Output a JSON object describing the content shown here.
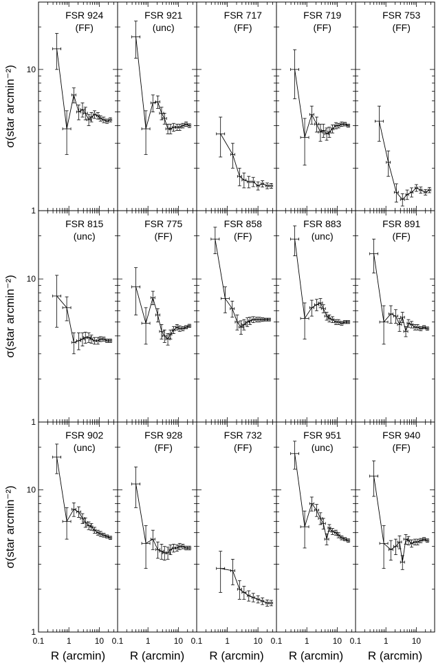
{
  "figure": {
    "ylabel": "σ(star arcmin⁻²)",
    "xlabel": "R (arcmin)"
  },
  "axis_tick_labels": {
    "y": [
      {
        "value": 10,
        "label": "10"
      },
      {
        "value": 1,
        "label": "1"
      }
    ],
    "x": [
      {
        "value": 0.1,
        "label": "0.1"
      },
      {
        "value": 1,
        "label": "1"
      },
      {
        "value": 10,
        "label": "10"
      }
    ]
  },
  "chart_data": [
    {
      "type": "line",
      "title": "FSR 924",
      "subtitle": "(FF)",
      "xscale": "log",
      "yscale": "log",
      "xlim": [
        0.1,
        40
      ],
      "ylim": [
        1,
        30
      ],
      "x": [
        0.4,
        0.85,
        1.45,
        2.1,
        2.8,
        3.5,
        4.5,
        5.5,
        7,
        9,
        11,
        14,
        18,
        23
      ],
      "values": [
        14.0,
        3.8,
        6.6,
        5.0,
        5.2,
        4.9,
        4.4,
        4.6,
        4.8,
        4.7,
        4.5,
        4.4,
        4.3,
        4.4
      ],
      "errors": [
        4.0,
        1.3,
        0.8,
        0.6,
        0.6,
        0.5,
        0.4,
        0.35,
        0.3,
        0.25,
        0.2,
        0.2,
        0.15,
        0.15
      ]
    },
    {
      "type": "line",
      "title": "FSR 921",
      "subtitle": "(unc)",
      "xscale": "log",
      "yscale": "log",
      "xlim": [
        0.1,
        40
      ],
      "ylim": [
        1,
        30
      ],
      "x": [
        0.4,
        0.85,
        1.45,
        2.1,
        2.8,
        3.5,
        4.5,
        5.5,
        7,
        9,
        11,
        14,
        18,
        23
      ],
      "values": [
        17.0,
        3.8,
        5.8,
        5.9,
        4.9,
        4.5,
        3.8,
        3.8,
        3.9,
        3.9,
        3.9,
        4.0,
        4.1,
        4.0
      ],
      "errors": [
        5.0,
        1.3,
        0.8,
        0.6,
        0.5,
        0.4,
        0.3,
        0.3,
        0.25,
        0.2,
        0.2,
        0.15,
        0.15,
        0.12
      ]
    },
    {
      "type": "line",
      "title": "FSR 717",
      "subtitle": "(FF)",
      "xscale": "log",
      "yscale": "log",
      "xlim": [
        0.1,
        40
      ],
      "ylim": [
        1,
        30
      ],
      "x": [
        0.6,
        1.5,
        2.5,
        3.5,
        5,
        7,
        10,
        14,
        20,
        27
      ],
      "values": [
        3.5,
        2.5,
        1.75,
        1.65,
        1.6,
        1.6,
        1.5,
        1.55,
        1.5,
        1.5
      ],
      "errors": [
        1.1,
        0.5,
        0.25,
        0.2,
        0.15,
        0.12,
        0.1,
        0.08,
        0.07,
        0.06
      ]
    },
    {
      "type": "line",
      "title": "FSR 719",
      "subtitle": "(FF)",
      "xscale": "log",
      "yscale": "log",
      "xlim": [
        0.1,
        40
      ],
      "ylim": [
        1,
        30
      ],
      "x": [
        0.4,
        0.85,
        1.45,
        2.1,
        2.8,
        3.5,
        4.5,
        5.5,
        7,
        9,
        11,
        14,
        18,
        23
      ],
      "values": [
        10.0,
        3.3,
        4.8,
        4.1,
        3.6,
        3.7,
        3.5,
        3.6,
        3.8,
        4.0,
        4.0,
        4.1,
        4.1,
        4.0
      ],
      "errors": [
        3.8,
        1.2,
        0.7,
        0.5,
        0.5,
        0.4,
        0.35,
        0.3,
        0.25,
        0.2,
        0.15,
        0.15,
        0.12,
        0.1
      ]
    },
    {
      "type": "line",
      "title": "FSR 753",
      "subtitle": "(FF)",
      "xscale": "log",
      "yscale": "log",
      "xlim": [
        0.1,
        40
      ],
      "ylim": [
        1,
        30
      ],
      "x": [
        0.6,
        1.2,
        2.2,
        3.5,
        5,
        7,
        10,
        14,
        20,
        27
      ],
      "values": [
        4.3,
        2.2,
        1.35,
        1.2,
        1.3,
        1.35,
        1.45,
        1.4,
        1.35,
        1.4
      ],
      "errors": [
        1.2,
        0.45,
        0.2,
        0.12,
        0.1,
        0.1,
        0.08,
        0.07,
        0.06,
        0.06
      ]
    },
    {
      "type": "line",
      "title": "FSR 815",
      "subtitle": "(unc)",
      "xscale": "log",
      "yscale": "log",
      "xlim": [
        0.1,
        40
      ],
      "ylim": [
        1,
        30
      ],
      "x": [
        0.4,
        0.85,
        1.45,
        2.1,
        2.8,
        3.5,
        4.5,
        5.5,
        7,
        9,
        11,
        14,
        18,
        23
      ],
      "values": [
        7.6,
        6.3,
        3.6,
        3.7,
        3.8,
        3.9,
        3.9,
        3.8,
        3.7,
        3.7,
        3.8,
        3.8,
        3.7,
        3.7
      ],
      "errors": [
        3.0,
        1.2,
        0.6,
        0.5,
        0.4,
        0.35,
        0.3,
        0.25,
        0.2,
        0.2,
        0.15,
        0.12,
        0.1,
        0.1
      ]
    },
    {
      "type": "line",
      "title": "FSR 775",
      "subtitle": "(FF)",
      "xscale": "log",
      "yscale": "log",
      "xlim": [
        0.1,
        40
      ],
      "ylim": [
        1,
        30
      ],
      "x": [
        0.4,
        0.85,
        1.45,
        2.1,
        2.8,
        3.5,
        4.5,
        5.5,
        7,
        9,
        11,
        14,
        18,
        23
      ],
      "values": [
        8.8,
        4.9,
        7.4,
        5.6,
        4.3,
        4.0,
        3.8,
        4.1,
        4.4,
        4.6,
        4.5,
        4.5,
        4.6,
        4.7
      ],
      "errors": [
        3.2,
        1.4,
        0.8,
        0.6,
        0.5,
        0.4,
        0.35,
        0.3,
        0.25,
        0.2,
        0.2,
        0.15,
        0.12,
        0.12
      ]
    },
    {
      "type": "line",
      "title": "FSR 858",
      "subtitle": "(FF)",
      "xscale": "log",
      "yscale": "log",
      "xlim": [
        0.1,
        40
      ],
      "ylim": [
        1,
        30
      ],
      "x": [
        0.4,
        0.85,
        1.45,
        2.1,
        2.8,
        3.5,
        4.5,
        5.5,
        7,
        9,
        11,
        14,
        18,
        23
      ],
      "values": [
        19.0,
        7.3,
        6.2,
        5.0,
        4.6,
        4.8,
        5.0,
        5.1,
        5.2,
        5.2,
        5.2,
        5.2,
        5.2,
        5.2
      ],
      "errors": [
        4.0,
        1.5,
        0.8,
        0.6,
        0.5,
        0.4,
        0.35,
        0.3,
        0.25,
        0.2,
        0.2,
        0.15,
        0.12,
        0.12
      ]
    },
    {
      "type": "line",
      "title": "FSR 883",
      "subtitle": "(unc)",
      "xscale": "log",
      "yscale": "log",
      "xlim": [
        0.1,
        40
      ],
      "ylim": [
        1,
        30
      ],
      "x": [
        0.4,
        0.85,
        1.45,
        2.1,
        2.8,
        3.5,
        4.5,
        5.5,
        7,
        9,
        11,
        14,
        18,
        23
      ],
      "values": [
        19.0,
        5.3,
        6.3,
        6.6,
        6.8,
        6.2,
        5.5,
        5.3,
        5.2,
        5.0,
        5.0,
        4.9,
        5.0,
        5.0
      ],
      "errors": [
        4.5,
        1.5,
        0.8,
        0.6,
        0.5,
        0.4,
        0.35,
        0.3,
        0.25,
        0.2,
        0.2,
        0.15,
        0.12,
        0.12
      ]
    },
    {
      "type": "line",
      "title": "FSR 891",
      "subtitle": "(FF)",
      "xscale": "log",
      "yscale": "log",
      "xlim": [
        0.1,
        40
      ],
      "ylim": [
        1,
        30
      ],
      "x": [
        0.4,
        0.85,
        1.45,
        2.1,
        2.8,
        3.5,
        4.5,
        5.5,
        7,
        9,
        11,
        14,
        18,
        23
      ],
      "values": [
        15.0,
        5.0,
        5.7,
        5.5,
        4.8,
        5.4,
        4.3,
        4.9,
        4.8,
        4.6,
        4.6,
        4.5,
        4.6,
        4.5
      ],
      "errors": [
        4.0,
        1.5,
        0.8,
        0.6,
        0.5,
        0.45,
        0.35,
        0.3,
        0.25,
        0.2,
        0.2,
        0.15,
        0.12,
        0.12
      ]
    },
    {
      "type": "line",
      "title": "FSR 902",
      "subtitle": "(unc)",
      "xscale": "log",
      "yscale": "log",
      "xlim": [
        0.1,
        40
      ],
      "ylim": [
        1,
        30
      ],
      "x": [
        0.4,
        0.85,
        1.45,
        2.1,
        2.8,
        3.5,
        4.5,
        5.5,
        7,
        9,
        11,
        14,
        18,
        23
      ],
      "values": [
        17.0,
        6.0,
        7.3,
        7.0,
        6.3,
        5.9,
        5.6,
        5.5,
        5.2,
        5.0,
        4.9,
        4.8,
        4.7,
        4.6
      ],
      "errors": [
        4.0,
        1.5,
        0.8,
        0.6,
        0.5,
        0.45,
        0.35,
        0.3,
        0.25,
        0.2,
        0.2,
        0.15,
        0.12,
        0.12
      ]
    },
    {
      "type": "line",
      "title": "FSR 928",
      "subtitle": "(FF)",
      "xscale": "log",
      "yscale": "log",
      "xlim": [
        0.1,
        40
      ],
      "ylim": [
        1,
        30
      ],
      "x": [
        0.4,
        0.85,
        1.45,
        2.1,
        2.8,
        3.5,
        4.5,
        5.5,
        7,
        9,
        11,
        14,
        18,
        23
      ],
      "values": [
        11.0,
        4.2,
        4.5,
        3.8,
        3.7,
        3.6,
        3.6,
        3.8,
        3.9,
        3.9,
        4.0,
        4.0,
        3.9,
        3.9
      ],
      "errors": [
        3.5,
        1.4,
        0.7,
        0.5,
        0.45,
        0.4,
        0.35,
        0.3,
        0.25,
        0.2,
        0.2,
        0.15,
        0.12,
        0.12
      ]
    },
    {
      "type": "line",
      "title": "FSR 732",
      "subtitle": "(FF)",
      "xscale": "log",
      "yscale": "log",
      "xlim": [
        0.1,
        40
      ],
      "ylim": [
        1,
        30
      ],
      "x": [
        0.6,
        1.5,
        2.5,
        3.5,
        5,
        7,
        10,
        14,
        20,
        27
      ],
      "values": [
        2.8,
        2.7,
        2.0,
        1.9,
        1.8,
        1.75,
        1.7,
        1.65,
        1.6,
        1.6
      ],
      "errors": [
        0.9,
        0.55,
        0.3,
        0.2,
        0.15,
        0.12,
        0.1,
        0.09,
        0.08,
        0.07
      ]
    },
    {
      "type": "line",
      "title": "FSR 951",
      "subtitle": "(unc)",
      "xscale": "log",
      "yscale": "log",
      "xlim": [
        0.1,
        40
      ],
      "ylim": [
        1,
        30
      ],
      "x": [
        0.4,
        0.85,
        1.45,
        2.1,
        2.8,
        3.5,
        4.5,
        5.5,
        7,
        9,
        11,
        14,
        18,
        23
      ],
      "values": [
        18.0,
        5.5,
        8.0,
        7.2,
        6.3,
        5.8,
        4.5,
        5.4,
        5.1,
        5.0,
        4.8,
        4.6,
        4.5,
        4.4
      ],
      "errors": [
        4.0,
        1.6,
        0.9,
        0.7,
        0.6,
        0.5,
        0.4,
        0.3,
        0.25,
        0.2,
        0.2,
        0.15,
        0.12,
        0.12
      ]
    },
    {
      "type": "line",
      "title": "FSR 940",
      "subtitle": "(FF)",
      "xscale": "log",
      "yscale": "log",
      "xlim": [
        0.1,
        40
      ],
      "ylim": [
        1,
        30
      ],
      "x": [
        0.4,
        0.85,
        1.45,
        2.1,
        2.8,
        3.5,
        4.5,
        5.5,
        7,
        9,
        11,
        14,
        18,
        23
      ],
      "values": [
        12.5,
        4.2,
        3.8,
        4.0,
        4.3,
        3.1,
        4.5,
        4.4,
        4.2,
        4.3,
        4.3,
        4.4,
        4.5,
        4.4
      ],
      "errors": [
        3.5,
        1.4,
        0.6,
        0.5,
        0.45,
        0.35,
        0.35,
        0.3,
        0.25,
        0.2,
        0.2,
        0.15,
        0.12,
        0.12
      ]
    }
  ]
}
